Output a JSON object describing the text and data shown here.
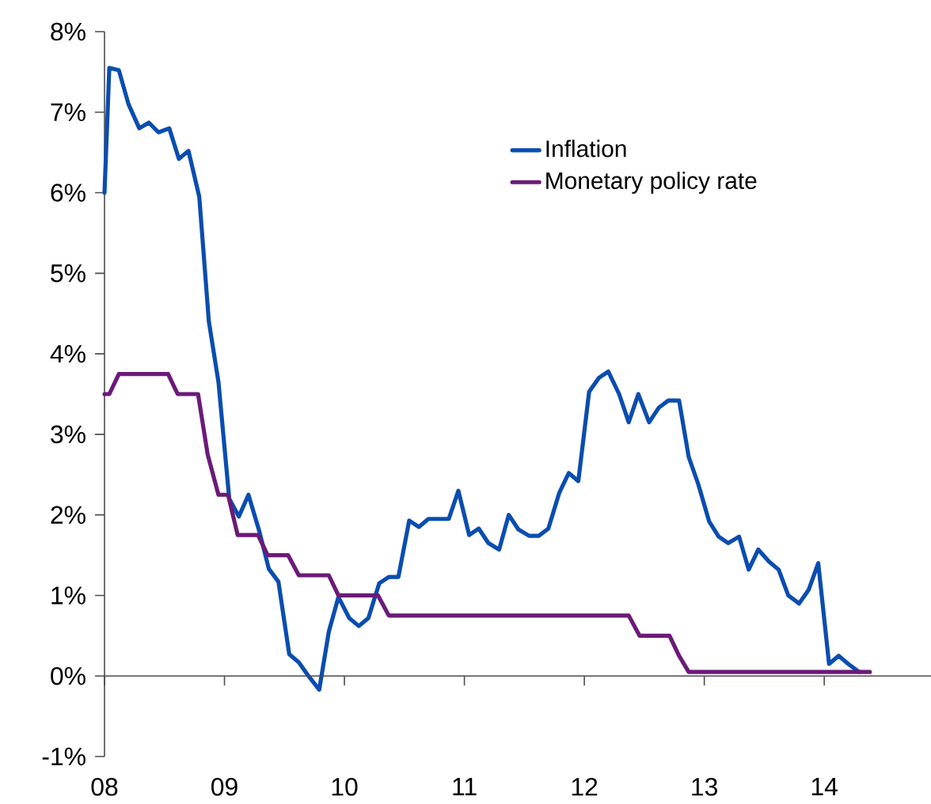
{
  "chart_data": {
    "type": "line",
    "xlim": [
      2008,
      2014.89
    ],
    "ylim": [
      -1,
      8
    ],
    "xticks": [
      {
        "value": 2008,
        "label": "08"
      },
      {
        "value": 2009,
        "label": "09"
      },
      {
        "value": 2010,
        "label": "10"
      },
      {
        "value": 2011,
        "label": "11"
      },
      {
        "value": 2012,
        "label": "12"
      },
      {
        "value": 2013,
        "label": "13"
      },
      {
        "value": 2014,
        "label": "14"
      }
    ],
    "yticks": [
      {
        "value": -1,
        "label": "-1%"
      },
      {
        "value": 0,
        "label": "0%"
      },
      {
        "value": 1,
        "label": "1%"
      },
      {
        "value": 2,
        "label": "2%"
      },
      {
        "value": 3,
        "label": "3%"
      },
      {
        "value": 4,
        "label": "4%"
      },
      {
        "value": 5,
        "label": "5%"
      },
      {
        "value": 6,
        "label": "6%"
      },
      {
        "value": 7,
        "label": "7%"
      },
      {
        "value": 8,
        "label": "8%"
      }
    ],
    "legend": "top right",
    "series": [
      {
        "name": "Inflation",
        "color": "#0a4db0",
        "x": [
          2008.0,
          2008.04,
          2008.12,
          2008.2,
          2008.29,
          2008.37,
          2008.45,
          2008.54,
          2008.62,
          2008.7,
          2008.79,
          2008.87,
          2008.95,
          2009.04,
          2009.12,
          2009.2,
          2009.29,
          2009.37,
          2009.45,
          2009.54,
          2009.62,
          2009.7,
          2009.79,
          2009.87,
          2009.95,
          2010.04,
          2010.12,
          2010.2,
          2010.29,
          2010.37,
          2010.45,
          2010.54,
          2010.62,
          2010.7,
          2010.79,
          2010.87,
          2010.95,
          2011.04,
          2011.12,
          2011.2,
          2011.29,
          2011.37,
          2011.45,
          2011.54,
          2011.62,
          2011.7,
          2011.79,
          2011.87,
          2011.95,
          2012.04,
          2012.12,
          2012.2,
          2012.29,
          2012.37,
          2012.45,
          2012.54,
          2012.62,
          2012.7,
          2012.79,
          2012.87,
          2012.95,
          2013.04,
          2013.12,
          2013.2,
          2013.29,
          2013.37,
          2013.45,
          2013.54,
          2013.62,
          2013.7,
          2013.79,
          2013.87,
          2013.95,
          2014.04,
          2014.12,
          2014.2,
          2014.29
        ],
        "values": [
          6.0,
          7.55,
          7.52,
          7.1,
          6.8,
          6.87,
          6.75,
          6.8,
          6.42,
          6.52,
          5.95,
          4.4,
          3.65,
          2.2,
          1.98,
          2.25,
          1.8,
          1.33,
          1.17,
          0.27,
          0.17,
          0.0,
          -0.17,
          0.55,
          0.98,
          0.72,
          0.62,
          0.72,
          1.15,
          1.23,
          1.23,
          1.93,
          1.85,
          1.95,
          1.95,
          1.95,
          2.3,
          1.75,
          1.83,
          1.65,
          1.57,
          2.0,
          1.82,
          1.74,
          1.74,
          1.83,
          2.27,
          2.52,
          2.42,
          3.53,
          3.7,
          3.78,
          3.5,
          3.15,
          3.5,
          3.15,
          3.33,
          3.42,
          3.42,
          2.72,
          2.38,
          1.92,
          1.73,
          1.65,
          1.73,
          1.32,
          1.57,
          1.42,
          1.32,
          1.0,
          0.9,
          1.07,
          1.4,
          0.15,
          0.25,
          0.15,
          0.05
        ]
      },
      {
        "name": "Monetary policy rate",
        "color": "#6b1a78",
        "x": [
          2008.0,
          2008.04,
          2008.12,
          2008.53,
          2008.61,
          2008.78,
          2008.86,
          2008.95,
          2009.03,
          2009.11,
          2009.28,
          2009.36,
          2009.53,
          2009.62,
          2009.87,
          2009.95,
          2010.28,
          2010.37,
          2012.37,
          2012.46,
          2012.71,
          2012.79,
          2012.87,
          2014.38
        ],
        "values": [
          3.5,
          3.5,
          3.75,
          3.75,
          3.5,
          3.5,
          2.75,
          2.25,
          2.25,
          1.75,
          1.75,
          1.5,
          1.5,
          1.25,
          1.25,
          1.0,
          1.0,
          0.75,
          0.75,
          0.5,
          0.5,
          0.25,
          0.05,
          0.05
        ]
      }
    ]
  }
}
